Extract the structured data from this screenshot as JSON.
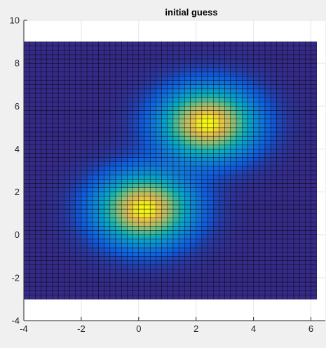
{
  "chart_data": {
    "type": "heatmap",
    "title": "initial guess",
    "xlabel": "",
    "ylabel": "",
    "xlim": [
      -4,
      6.5
    ],
    "ylim": [
      -4,
      10
    ],
    "xticks": [
      -4,
      -2,
      0,
      2,
      4,
      6
    ],
    "yticks": [
      -4,
      -2,
      0,
      2,
      4,
      6,
      8,
      10
    ],
    "xtick_labels": [
      "-4",
      "-2",
      "0",
      "2",
      "4",
      "6"
    ],
    "ytick_labels": [
      "-4",
      "-2",
      "0",
      "2",
      "4",
      "6",
      "8",
      "10"
    ],
    "grid": true,
    "colormap": "parula",
    "surface": {
      "x_range": [
        -4,
        6.2
      ],
      "y_range": [
        -3,
        9
      ],
      "cell_size": 0.2,
      "gaussians": [
        {
          "cx": 0.1,
          "cy": 1.1,
          "sigma_x": 1.1,
          "sigma_y": 1.1,
          "peak": 1.0
        },
        {
          "cx": 2.3,
          "cy": 5.1,
          "sigma_x": 1.1,
          "sigma_y": 1.1,
          "peak": 1.0
        }
      ]
    },
    "colors": {
      "background": "#f0f0f0",
      "axes_background": "#ffffff",
      "axis_color": "#262626",
      "grid_color": "#e6e6e6",
      "mesh_edge": "#000000"
    }
  }
}
